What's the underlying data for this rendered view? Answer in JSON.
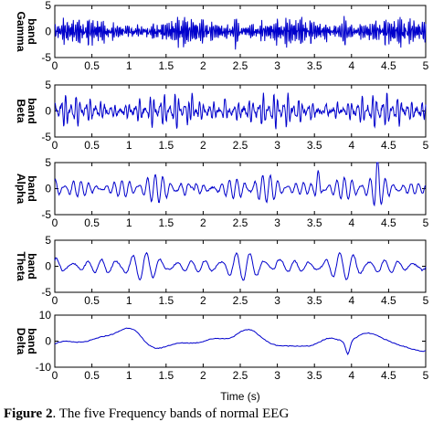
{
  "chart_data": {
    "type": "line",
    "xlabel": "Time (s)",
    "x_ticks": [
      "0",
      "0.5",
      "1",
      "1.5",
      "2",
      "2.5",
      "3",
      "3.5",
      "4",
      "4.5",
      "5"
    ],
    "xlim": [
      0,
      5
    ],
    "line_color": "#0000cc",
    "panels": [
      {
        "name": "Gamma band",
        "ylabel": "Gamma band",
        "ylim": [
          -5,
          5
        ],
        "y_ticks": [
          "5",
          "0",
          "-5"
        ],
        "signal": {
          "components": [
            [
              37,
              1.0,
              0.3
            ],
            [
              43,
              0.9,
              1.1
            ],
            [
              52,
              0.8,
              2.0
            ],
            [
              61,
              0.6,
              0.7
            ]
          ],
          "spikes": [
            [
              1.75,
              3.0
            ],
            [
              2.45,
              3.5
            ],
            [
              3.9,
              2.5
            ]
          ],
          "points": 1000
        }
      },
      {
        "name": "Beta band",
        "ylabel": "Beta band",
        "ylim": [
          -5,
          5
        ],
        "y_ticks": [
          "5",
          "0",
          "-5"
        ],
        "signal": {
          "components": [
            [
              15,
              1.4,
              0.2
            ],
            [
              21,
              1.1,
              1.4
            ],
            [
              27,
              0.7,
              2.3
            ]
          ],
          "spikes": [
            [
              1.85,
              3.5
            ],
            [
              2.3,
              2.0
            ],
            [
              3.65,
              2.0
            ]
          ],
          "points": 800
        }
      },
      {
        "name": "Alpha band",
        "ylabel": "Alpha band",
        "ylim": [
          -5,
          5
        ],
        "y_ticks": [
          "5",
          "0",
          "-5"
        ],
        "signal": {
          "components": [
            [
              9,
              1.5,
              0.5
            ],
            [
              11,
              1.0,
              2.1
            ]
          ],
          "spikes": [
            [
              3.55,
              3.0
            ],
            [
              4.35,
              3.8
            ],
            [
              1.85,
              1.5
            ]
          ],
          "points": 600
        }
      },
      {
        "name": "Theta band",
        "ylabel": "Theta band",
        "ylim": [
          -5,
          5
        ],
        "y_ticks": [
          "5",
          "0",
          "-5"
        ],
        "signal": {
          "components": [
            [
              5,
              1.7,
              0.4
            ],
            [
              6.5,
              0.8,
              1.5
            ]
          ],
          "spikes": [
            [
              3.0,
              1.0
            ]
          ],
          "points": 400
        }
      },
      {
        "name": "Delta band",
        "ylabel": "Delta band",
        "ylim": [
          -10,
          10
        ],
        "y_ticks": [
          "10",
          "0",
          "-10"
        ],
        "signal": {
          "components": [
            [
              0.6,
              3.5,
              -1.4
            ],
            [
              1.2,
              2.0,
              0.3
            ],
            [
              1.9,
              1.0,
              1.0
            ]
          ],
          "spikes": [
            [
              3.95,
              -5.0
            ]
          ],
          "points": 300
        }
      }
    ]
  },
  "caption": {
    "label": "Figure 2",
    "text": ". The five Frequency bands of normal EEG"
  }
}
